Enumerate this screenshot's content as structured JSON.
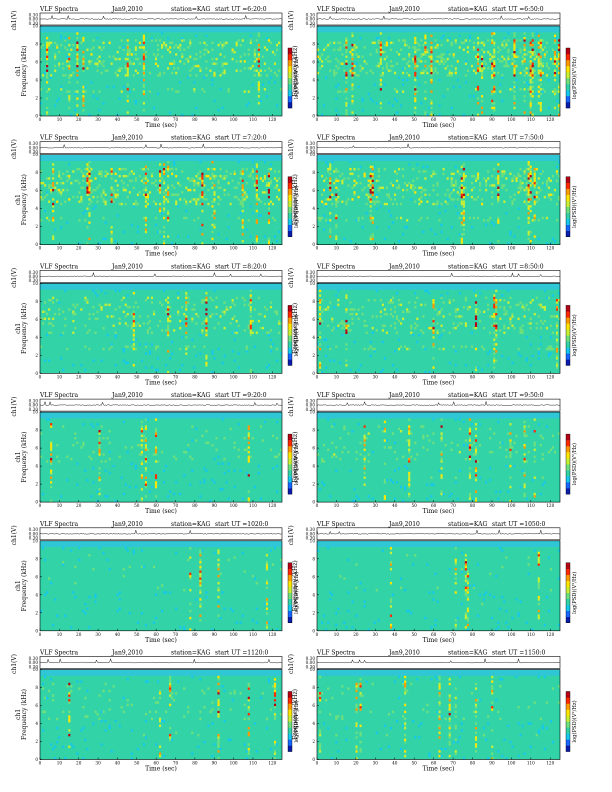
{
  "colors": {
    "background_noise": "#33d3a8",
    "scale": [
      "#0a1cae",
      "#1567ff",
      "#15c8ee",
      "#33d3a8",
      "#6fe07a",
      "#c8ef33",
      "#ffe500",
      "#ff9a00",
      "#ff2a00",
      "#b80015"
    ]
  },
  "chart_data": [
    {
      "type": "heatmap",
      "title": "VLF Spectra",
      "date": "Jan9,2010",
      "station": "station=KAG",
      "start": "start  UT =6:20:0",
      "ytop_label": "ch1(V)",
      "ylabel": "ch1\nFrequency (kHz)",
      "xlabel": "Time (sec)",
      "xticks": [
        "0",
        "10",
        "20",
        "30",
        "40",
        "50",
        "60",
        "70",
        "80",
        "90",
        "100",
        "110",
        "120"
      ],
      "yticks": [
        "0",
        "2",
        "4",
        "6",
        "8",
        "10"
      ],
      "top_ticks": [
        "0.30",
        "0.00",
        "0.30"
      ],
      "xlim": [
        0,
        125
      ],
      "ylim": [
        0,
        10
      ],
      "colorbar_label": "log(PSD)(V²/Hz)",
      "activity": 0.85,
      "top_band_khz": 9.3
    },
    {
      "type": "heatmap",
      "title": "VLF Spectra",
      "date": "Jan9,2010",
      "station": "station=KAG",
      "start": "start  UT =6:50:0",
      "ytop_label": "ch1(V)",
      "ylabel": "Frequency (kHz)",
      "xlabel": "Time (sec)",
      "xticks": [
        "0",
        "10",
        "20",
        "30",
        "40",
        "50",
        "60",
        "70",
        "80",
        "90",
        "100",
        "110",
        "120"
      ],
      "yticks": [
        "0",
        "2",
        "4",
        "6",
        "8",
        "10"
      ],
      "top_ticks": [
        "0.30",
        "0.00",
        "0.30"
      ],
      "xlim": [
        0,
        125
      ],
      "ylim": [
        0,
        10
      ],
      "colorbar_label": "log(PSD)(V²/Hz)",
      "activity": 0.9,
      "top_band_khz": 9.3
    },
    {
      "type": "heatmap",
      "title": "VLF Spectra",
      "date": "Jan9,2010",
      "station": "station=KAG",
      "start": "start  UT =7:20:0",
      "ytop_label": "ch1(V)",
      "ylabel": "ch1\nFrequency (kHz)",
      "xlabel": "Time (sec)",
      "xticks": [
        "0",
        "10",
        "20",
        "30",
        "40",
        "50",
        "60",
        "70",
        "80",
        "90",
        "100",
        "110",
        "120"
      ],
      "yticks": [
        "0",
        "2",
        "4",
        "6",
        "8",
        "10"
      ],
      "top_ticks": [
        "0.30",
        "0.00",
        "0.30"
      ],
      "xlim": [
        0,
        125
      ],
      "ylim": [
        0,
        10
      ],
      "colorbar_label": "log(PSD)(V²/Hz)",
      "activity": 0.9,
      "top_band_khz": 9.3
    },
    {
      "type": "heatmap",
      "title": "VLF Spectra",
      "date": "Jan9,2010",
      "station": "station=KAG",
      "start": "start  UT =7:50:0",
      "ytop_label": "ch1(V)",
      "ylabel": "Frequency (kHz)",
      "xlabel": "Time (sec)",
      "xticks": [
        "0",
        "10",
        "20",
        "30",
        "40",
        "50",
        "60",
        "70",
        "80",
        "90",
        "100",
        "110",
        "120"
      ],
      "yticks": [
        "0",
        "2",
        "4",
        "6",
        "8",
        "10"
      ],
      "top_ticks": [
        "0.30",
        "0.00",
        "0.30"
      ],
      "xlim": [
        0,
        125
      ],
      "ylim": [
        0,
        10
      ],
      "colorbar_label": "log(PSD)(V²/Hz)",
      "activity": 0.88,
      "top_band_khz": 9.3
    },
    {
      "type": "heatmap",
      "title": "VLF Spectra",
      "date": "Jan9,2010",
      "station": "station=KAG",
      "start": "start  UT =8:20:0",
      "ytop_label": "ch1(V)",
      "ylabel": "ch1\nFrequency (kHz)",
      "xlabel": "Time (sec)",
      "xticks": [
        "0",
        "10",
        "20",
        "30",
        "40",
        "50",
        "60",
        "70",
        "80",
        "90",
        "100",
        "110",
        "120"
      ],
      "yticks": [
        "0",
        "2",
        "4",
        "6",
        "8",
        "10"
      ],
      "top_ticks": [
        "0.30",
        "0.00",
        "0.30"
      ],
      "xlim": [
        0,
        125
      ],
      "ylim": [
        0,
        10
      ],
      "colorbar_label": "log(PSD)(V²/Hz)",
      "activity": 0.75,
      "top_band_khz": 9.3
    },
    {
      "type": "heatmap",
      "title": "VLF Spectra",
      "date": "Jan9,2010",
      "station": "station=KAG",
      "start": "start  UT =8:50:0",
      "ytop_label": "ch1(V)",
      "ylabel": "Frequency (kHz)",
      "xlabel": "Time (sec)",
      "xticks": [
        "0",
        "10",
        "20",
        "30",
        "40",
        "50",
        "60",
        "70",
        "80",
        "90",
        "100",
        "110",
        "120"
      ],
      "yticks": [
        "0",
        "2",
        "4",
        "6",
        "8",
        "10"
      ],
      "top_ticks": [
        "0.30",
        "0.00",
        "0.30"
      ],
      "xlim": [
        0,
        125
      ],
      "ylim": [
        0,
        10
      ],
      "colorbar_label": "log(PSD)(V²/Hz)",
      "activity": 0.8,
      "top_band_khz": 9.3
    },
    {
      "type": "heatmap",
      "title": "VLF Spectra",
      "date": "Jan9,2010",
      "station": "station=KAG",
      "start": "start  UT =9:20:0",
      "ytop_label": "ch1(V)",
      "ylabel": "ch1\nFrequency (kHz)",
      "xlabel": "Time (sec)",
      "xticks": [
        "0",
        "10",
        "20",
        "30",
        "40",
        "50",
        "60",
        "70",
        "80",
        "90",
        "100",
        "110",
        "120"
      ],
      "yticks": [
        "0",
        "2",
        "4",
        "6",
        "8",
        "10"
      ],
      "top_ticks": [
        "0.30",
        "0.00",
        "0.30"
      ],
      "xlim": [
        0,
        125
      ],
      "ylim": [
        0,
        10
      ],
      "colorbar_label": "log(PSD)(V²/Hz)",
      "activity": 0.55,
      "top_band_khz": 9.3
    },
    {
      "type": "heatmap",
      "title": "VLF Spectra",
      "date": "Jan9,2010",
      "station": "station=KAG",
      "start": "start  UT =9:50:0",
      "ytop_label": "ch1(V)",
      "ylabel": "Frequency (kHz)",
      "xlabel": "Time (sec)",
      "xticks": [
        "0",
        "10",
        "20",
        "30",
        "40",
        "50",
        "60",
        "70",
        "80",
        "90",
        "100",
        "110",
        "120"
      ],
      "yticks": [
        "0",
        "2",
        "4",
        "6",
        "8",
        "10"
      ],
      "top_ticks": [
        "0.30",
        "0.00",
        "0.30"
      ],
      "xlim": [
        0,
        125
      ],
      "ylim": [
        0,
        10
      ],
      "colorbar_label": "log(PSD)(V²/Hz)",
      "activity": 0.6,
      "top_band_khz": 9.3
    },
    {
      "type": "heatmap",
      "title": "VLF Spectra",
      "date": "Jan9,2010",
      "station": "station=KAG",
      "start": "start  UT =1020:0",
      "ytop_label": "ch1(V)",
      "ylabel": "ch1\nFrequency (kHz)",
      "xlabel": "Time (sec)",
      "xticks": [
        "0",
        "10",
        "20",
        "30",
        "40",
        "50",
        "60",
        "70",
        "80",
        "90",
        "100",
        "110",
        "120"
      ],
      "yticks": [
        "0",
        "2",
        "4",
        "6",
        "8",
        "10"
      ],
      "top_ticks": [
        "0.30",
        "0.00",
        "0.30"
      ],
      "xlim": [
        0,
        125
      ],
      "ylim": [
        0,
        10
      ],
      "colorbar_label": "log(PSD)(V²/Hz)",
      "activity": 0.45,
      "top_band_khz": 9.3
    },
    {
      "type": "heatmap",
      "title": "VLF Spectra",
      "date": "Jan9,2010",
      "station": "station=KAG",
      "start": "start  UT =1050:0",
      "ytop_label": "ch1(V)",
      "ylabel": "Frequency (kHz)",
      "xlabel": "Time (sec)",
      "xticks": [
        "0",
        "10",
        "20",
        "30",
        "40",
        "50",
        "60",
        "70",
        "80",
        "90",
        "100",
        "110",
        "120"
      ],
      "yticks": [
        "0",
        "2",
        "4",
        "6",
        "8",
        "10"
      ],
      "top_ticks": [
        "0.30",
        "0.00",
        "0.30"
      ],
      "xlim": [
        0,
        125
      ],
      "ylim": [
        0,
        10
      ],
      "colorbar_label": "log(PSD)(V²/Hz)",
      "activity": 0.45,
      "top_band_khz": 9.3
    },
    {
      "type": "heatmap",
      "title": "VLF Spectra",
      "date": "Jan9,2010",
      "station": "station=KAG",
      "start": "start  UT =1120:0",
      "ytop_label": "ch1(V)",
      "ylabel": "ch1\nFrequency (kHz)",
      "xlabel": "Time (sec)",
      "xticks": [
        "0",
        "10",
        "20",
        "30",
        "40",
        "50",
        "60",
        "70",
        "80",
        "90",
        "100",
        "110",
        "120"
      ],
      "yticks": [
        "0",
        "2",
        "4",
        "6",
        "8",
        "10"
      ],
      "top_ticks": [
        "0.30",
        "0.00",
        "0.30"
      ],
      "xlim": [
        0,
        125
      ],
      "ylim": [
        0,
        10
      ],
      "colorbar_label": "log(PSD)(V²/Hz)",
      "activity": 0.55,
      "top_band_khz": 9.3
    },
    {
      "type": "heatmap",
      "title": "VLF Spectra",
      "date": "Jan9,2010",
      "station": "station=KAG",
      "start": "start  UT =1150:0",
      "ytop_label": "ch1(V)",
      "ylabel": "Frequency (kHz)",
      "xlabel": "Time (sec)",
      "xticks": [
        "0",
        "10",
        "20",
        "30",
        "40",
        "50",
        "60",
        "70",
        "80",
        "90",
        "100",
        "110",
        "120"
      ],
      "yticks": [
        "0",
        "2",
        "4",
        "6",
        "8",
        "10"
      ],
      "top_ticks": [
        "0.30",
        "0.00",
        "0.30"
      ],
      "xlim": [
        0,
        125
      ],
      "ylim": [
        0,
        10
      ],
      "colorbar_label": "log(PSD)(V²/Hz)",
      "activity": 0.5,
      "top_band_khz": 9.3
    }
  ]
}
